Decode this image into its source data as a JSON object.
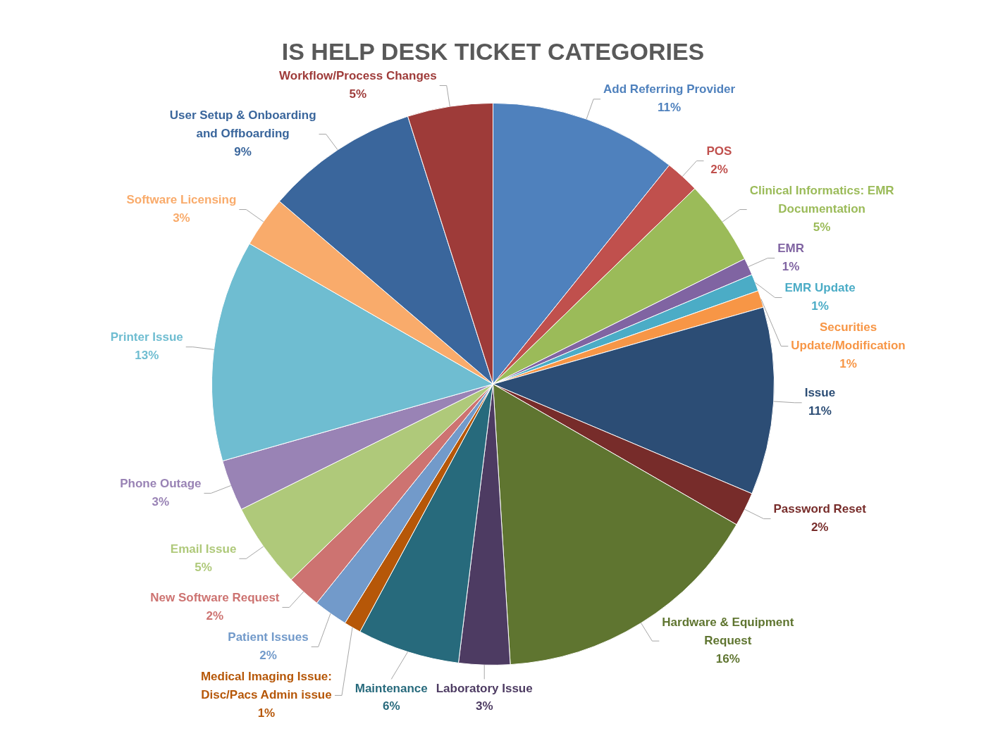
{
  "chart_data": {
    "type": "pie",
    "title": "IS HELP DESK TICKET CATEGORIES",
    "categories": [
      "Add Referring Provider",
      "POS",
      "Clinical Informatics: EMR Documentation",
      "EMR",
      "EMR Update",
      "Securities Update/Modification",
      "Issue",
      "Password Reset",
      "Hardware & Equipment Request",
      "Laboratory Issue",
      "Maintenance",
      "Medical Imaging Issue: Disc/Pacs Admin issue",
      "Patient Issues",
      "New Software Request",
      "Email Issue",
      "Phone Outage",
      "Printer Issue",
      "Software Licensing",
      "User Setup & Onboarding and Offboarding",
      "Workflow/Process Changes"
    ],
    "values": [
      11,
      2,
      5,
      1,
      1,
      1,
      11,
      2,
      16,
      3,
      6,
      1,
      2,
      2,
      5,
      3,
      13,
      3,
      9,
      5
    ],
    "value_labels": [
      "11%",
      "2%",
      "5%",
      "1%",
      "1%",
      "1%",
      "11%",
      "2%",
      "16%",
      "3%",
      "6%",
      "1%",
      "2%",
      "2%",
      "5%",
      "3%",
      "13%",
      "3%",
      "9%",
      "5%"
    ],
    "colors": [
      "#4f81bd",
      "#c0504d",
      "#9bbb59",
      "#8064a2",
      "#4bacc6",
      "#f79646",
      "#2c4d75",
      "#772c2a",
      "#5f7530",
      "#4d3b62",
      "#276a7c",
      "#b65708",
      "#729aca",
      "#cd7371",
      "#afc97a",
      "#9983b5",
      "#6fbdd1",
      "#f9ab6b",
      "#3a669c",
      "#9e3b39"
    ],
    "legend": false
  }
}
